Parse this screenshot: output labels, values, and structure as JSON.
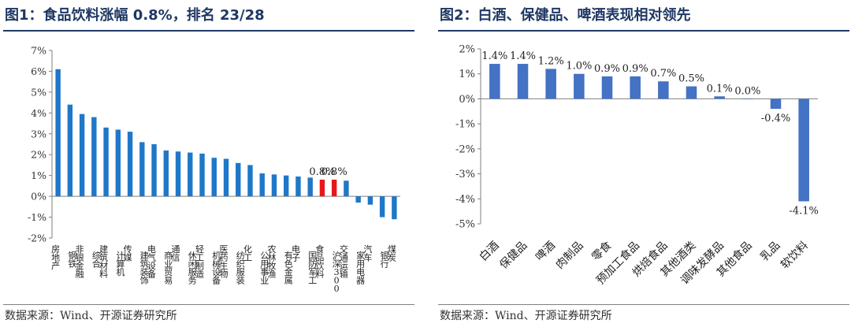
{
  "left": {
    "title": "图1：食品饮料涨幅 0.8%，排名 23/28",
    "source": "数据来源：Wind、开源证券研究所",
    "chart_data": {
      "type": "bar",
      "ylim": [
        -2,
        7
      ],
      "yticks": [
        "7%",
        "6%",
        "5%",
        "4%",
        "3%",
        "2%",
        "1%",
        "0%",
        "-1%",
        "-2%"
      ],
      "ytick_values": [
        7,
        6,
        5,
        4,
        3,
        2,
        1,
        0,
        -1,
        -2
      ],
      "categories": [
        "房地产",
        "钢铁",
        "非银金融",
        "综合",
        "建筑材料",
        "计算机",
        "传媒",
        "建筑装饰",
        "电气设备",
        "商业贸易",
        "通信",
        "休闲服务",
        "轻工制造",
        "机械设备",
        "医药生物",
        "纺织服装",
        "化工",
        "公用事业",
        "农林牧渔",
        "有色金属",
        "电子",
        "国防军工",
        "食品饮料",
        "沪深300",
        "交通运输",
        "家用电器",
        "汽车",
        "银行",
        "煤炭"
      ],
      "values": [
        6.1,
        4.4,
        3.95,
        3.8,
        3.3,
        3.2,
        3.1,
        2.6,
        2.5,
        2.2,
        2.15,
        2.1,
        2.05,
        1.85,
        1.8,
        1.6,
        1.5,
        1.1,
        1.05,
        1.0,
        0.95,
        0.9,
        0.8,
        0.8,
        0.75,
        -0.3,
        -0.4,
        -1.0,
        -1.1
      ],
      "highlight": [
        "食品饮料",
        "沪深300"
      ],
      "labels": {
        "食品饮料": "0.8%",
        "沪深300": "0.8%"
      },
      "bar_color": "#1f77c8",
      "highlight_color": "#e8161b"
    }
  },
  "right": {
    "title": "图2：白酒、保健品、啤酒表现相对领先",
    "source": "数据来源：Wind、开源证券研究所",
    "chart_data": {
      "type": "bar",
      "ylim": [
        -5,
        2
      ],
      "yticks": [
        "2%",
        "1%",
        "0%",
        "-1%",
        "-2%",
        "-3%",
        "-4%",
        "-5%"
      ],
      "ytick_values": [
        2,
        1,
        0,
        -1,
        -2,
        -3,
        -4,
        -5
      ],
      "categories": [
        "白酒",
        "保健品",
        "啤酒",
        "肉制品",
        "零食",
        "预加工食品",
        "烘焙食品",
        "其他酒类",
        "调味发酵品",
        "其他食品",
        "乳品",
        "软饮料"
      ],
      "values": [
        1.4,
        1.4,
        1.2,
        1.0,
        0.9,
        0.9,
        0.7,
        0.5,
        0.1,
        0.0,
        -0.4,
        -4.1
      ],
      "value_labels": [
        "1.4%",
        "1.4%",
        "1.2%",
        "1.0%",
        "0.9%",
        "0.9%",
        "0.7%",
        "0.5%",
        "0.1%",
        "0.0%",
        "-0.4%",
        "-4.1%"
      ],
      "bar_color": "#4472c4"
    }
  }
}
